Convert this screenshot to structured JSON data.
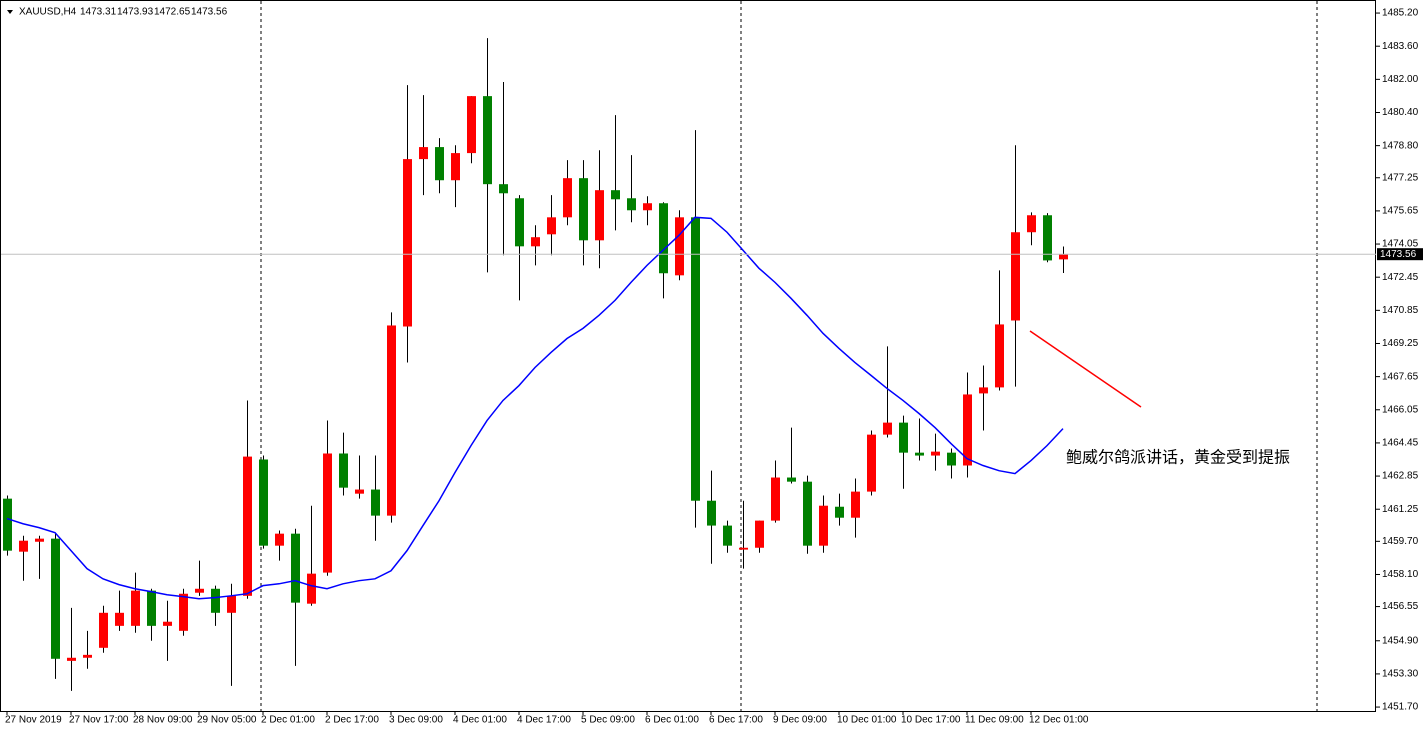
{
  "chart_data": {
    "type": "candlestick",
    "symbol": "XAUUSD,H4",
    "annotation": "鲍威尔鸽派讲话，黄金受到提振",
    "up_color": "#ff0000",
    "down_color": "#008000",
    "wick_color": "#000000",
    "categories": [
      "27 Nov 2019",
      null,
      null,
      null,
      "27 Nov 17:00",
      null,
      null,
      null,
      "28 Nov 09:00",
      null,
      null,
      null,
      "29 Nov 05:00",
      null,
      null,
      null,
      "2 Dec 01:00",
      null,
      null,
      null,
      "2 Dec 17:00",
      null,
      null,
      null,
      "3 Dec 09:00",
      null,
      null,
      null,
      "4 Dec 01:00",
      null,
      null,
      null,
      "4 Dec 17:00",
      null,
      null,
      null,
      "5 Dec 09:00",
      null,
      null,
      null,
      "6 Dec 01:00",
      null,
      null,
      null,
      "6 Dec 17:00",
      null,
      null,
      null,
      "9 Dec 09:00",
      null,
      null,
      null,
      "10 Dec 01:00",
      null,
      null,
      null,
      "10 Dec 17:00",
      null,
      null,
      null,
      "11 Dec 09:00",
      null,
      null,
      null,
      "12 Dec 01:00",
      null,
      null
    ],
    "open": [
      1461.76,
      1459.2,
      1459.68,
      1459.83,
      1453.93,
      1454.08,
      1454.56,
      1455.62,
      1455.62,
      1457.32,
      1455.62,
      1455.38,
      1457.22,
      1457.41,
      1456.25,
      1457.07,
      1463.65,
      1459.49,
      1460.07,
      1456.69,
      1458.19,
      1463.94,
      1462.0,
      1462.2,
      1460.94,
      1470.07,
      1478.15,
      1478.73,
      1477.13,
      1478.44,
      1481.19,
      1476.94,
      1476.26,
      1473.94,
      1474.52,
      1475.34,
      1477.23,
      1474.23,
      1476.65,
      1476.26,
      1475.68,
      1476.02,
      1472.54,
      1475.34,
      1461.66,
      1460.46,
      1459.3,
      1459.39,
      1460.7,
      1462.78,
      1462.58,
      1459.49,
      1461.37,
      1460.84,
      1462.1,
      1464.85,
      1465.43,
      1463.98,
      1463.84,
      1463.98,
      1463.36,
      1466.84,
      1467.13,
      1470.36,
      1474.62,
      1475.44,
      1473.31
    ],
    "high": [
      1461.91,
      1459.97,
      1459.97,
      1460.12,
      1456.49,
      1455.38,
      1456.59,
      1457.32,
      1458.19,
      1457.41,
      1456.83,
      1457.41,
      1458.77,
      1457.56,
      1457.65,
      1466.5,
      1463.84,
      1460.22,
      1460.31,
      1461.42,
      1465.53,
      1464.95,
      1463.84,
      1463.84,
      1470.75,
      1481.72,
      1481.24,
      1479.16,
      1478.82,
      1481.19,
      1483.99,
      1481.87,
      1476.41,
      1474.96,
      1476.41,
      1478.1,
      1478.1,
      1478.58,
      1480.27,
      1478.34,
      1476.36,
      1476.07,
      1475.68,
      1479.55,
      1463.11,
      1460.7,
      1461.66,
      1460.7,
      1463.6,
      1465.19,
      1462.87,
      1461.91,
      1462.0,
      1462.73,
      1465.05,
      1469.11,
      1465.77,
      1465.63,
      1464.9,
      1464.18,
      1467.85,
      1468.19,
      1472.78,
      1478.82,
      1475.58,
      1475.54,
      1473.93
    ],
    "low": [
      1459.01,
      1457.8,
      1457.89,
      1453.06,
      1452.48,
      1453.55,
      1454.32,
      1455.38,
      1455.29,
      1454.9,
      1453.93,
      1455.14,
      1457.07,
      1455.62,
      1452.72,
      1456.93,
      1459.35,
      1458.77,
      1453.69,
      1456.59,
      1458.04,
      1461.91,
      1461.76,
      1459.73,
      1460.6,
      1468.33,
      1476.41,
      1476.5,
      1475.83,
      1477.95,
      1472.68,
      1473.51,
      1471.33,
      1473.02,
      1473.51,
      1474.96,
      1473.02,
      1472.88,
      1474.71,
      1475.1,
      1474.96,
      1471.43,
      1472.3,
      1460.36,
      1458.62,
      1459.15,
      1458.38,
      1459.15,
      1460.6,
      1462.49,
      1459.1,
      1459.15,
      1460.46,
      1459.88,
      1461.91,
      1464.71,
      1462.24,
      1463.6,
      1463.11,
      1462.73,
      1462.78,
      1465.05,
      1466.98,
      1467.17,
      1473.99,
      1473.17,
      1472.65
    ],
    "close": [
      1459.25,
      1459.73,
      1459.83,
      1454.03,
      1454.08,
      1454.22,
      1456.25,
      1456.25,
      1457.32,
      1455.62,
      1455.82,
      1457.17,
      1457.41,
      1456.25,
      1457.07,
      1463.79,
      1459.49,
      1460.07,
      1456.74,
      1458.14,
      1463.94,
      1462.29,
      1462.2,
      1460.94,
      1470.12,
      1478.15,
      1478.73,
      1477.13,
      1478.44,
      1481.19,
      1476.94,
      1476.5,
      1473.94,
      1474.38,
      1475.34,
      1477.23,
      1474.23,
      1476.65,
      1476.21,
      1475.68,
      1476.02,
      1472.64,
      1475.34,
      1461.66,
      1460.46,
      1459.49,
      1459.39,
      1460.7,
      1462.78,
      1462.58,
      1459.49,
      1461.42,
      1460.84,
      1462.1,
      1464.85,
      1465.43,
      1463.98,
      1463.84,
      1464.03,
      1463.36,
      1466.79,
      1467.13,
      1470.17,
      1474.62,
      1475.44,
      1473.26,
      1473.56
    ],
    "ma": {
      "color": "#0000ff",
      "values": [
        1460.8,
        1460.55,
        1460.36,
        1460.12,
        1459.25,
        1458.38,
        1457.89,
        1457.61,
        1457.41,
        1457.27,
        1457.12,
        1457.03,
        1456.93,
        1456.98,
        1457.07,
        1457.17,
        1457.56,
        1457.65,
        1457.8,
        1457.56,
        1457.41,
        1457.65,
        1457.8,
        1457.89,
        1458.28,
        1459.25,
        1460.46,
        1461.66,
        1463.02,
        1464.32,
        1465.53,
        1466.5,
        1467.22,
        1468.09,
        1468.82,
        1469.49,
        1469.98,
        1470.61,
        1471.33,
        1472.2,
        1473.02,
        1473.75,
        1474.47,
        1475.34,
        1475.29,
        1474.62,
        1473.75,
        1472.88,
        1472.2,
        1471.43,
        1470.61,
        1469.74,
        1469.01,
        1468.33,
        1467.71,
        1467.08,
        1466.5,
        1465.87,
        1465.19,
        1464.42,
        1463.69,
        1463.36,
        1463.11,
        1462.97,
        1463.6,
        1464.32,
        1465.14
      ]
    },
    "ylim": [
      1451.51,
      1485.83
    ],
    "yticks": [
      {
        "value": 1451.7,
        "label": "1451.70"
      },
      {
        "value": 1453.3,
        "label": "1453.30"
      },
      {
        "value": 1454.9,
        "label": "1454.90"
      },
      {
        "value": 1456.55,
        "label": "1456.55"
      },
      {
        "value": 1458.1,
        "label": "1458.10"
      },
      {
        "value": 1459.7,
        "label": "1459.70"
      },
      {
        "value": 1461.25,
        "label": "1461.25"
      },
      {
        "value": 1462.85,
        "label": "1462.85"
      },
      {
        "value": 1464.45,
        "label": "1464.45"
      },
      {
        "value": 1466.05,
        "label": "1466.05"
      },
      {
        "value": 1467.65,
        "label": "1467.65"
      },
      {
        "value": 1469.25,
        "label": "1469.25"
      },
      {
        "value": 1470.85,
        "label": "1470.85"
      },
      {
        "value": 1472.45,
        "label": "1472.45"
      },
      {
        "value": 1474.05,
        "label": "1474.05"
      },
      {
        "value": 1475.65,
        "label": "1475.65"
      },
      {
        "value": 1477.25,
        "label": "1477.25"
      },
      {
        "value": 1478.8,
        "label": "1478.80"
      },
      {
        "value": 1480.4,
        "label": "1480.40"
      },
      {
        "value": 1482,
        "label": "1482.00"
      },
      {
        "value": 1483.6,
        "label": "1483.60"
      },
      {
        "value": 1485.2,
        "label": "1485.20"
      }
    ]
  }
}
